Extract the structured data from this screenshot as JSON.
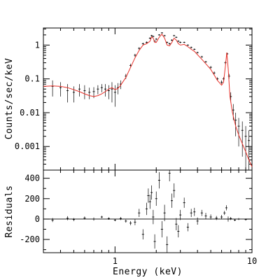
{
  "chart_data": [
    {
      "id": "spectrum",
      "type": "line",
      "xlabel": "",
      "ylabel": "Counts/sec/keV",
      "x_scale": "log",
      "y_scale": "log",
      "xlim": [
        0.3,
        10
      ],
      "ylim": [
        0.0002,
        3.2
      ],
      "x_ticks": [
        1,
        10
      ],
      "x_tick_labels": [
        "1",
        "10"
      ],
      "y_ticks": [
        0.001,
        0.01,
        0.1,
        1
      ],
      "y_tick_labels": [
        "0.001",
        "0.01",
        "0.1",
        "1"
      ],
      "series": [
        {
          "style": "data points with error bars (black)",
          "color": "#000000",
          "x": [
            0.35,
            0.4,
            0.45,
            0.5,
            0.55,
            0.6,
            0.65,
            0.7,
            0.75,
            0.8,
            0.85,
            0.9,
            0.95,
            1.0,
            1.05,
            1.1,
            1.2,
            1.3,
            1.4,
            1.5,
            1.6,
            1.7,
            1.8,
            1.85,
            1.9,
            1.95,
            2.0,
            2.1,
            2.2,
            2.3,
            2.4,
            2.5,
            2.6,
            2.7,
            2.8,
            2.9,
            3.0,
            3.2,
            3.4,
            3.6,
            3.8,
            4.0,
            4.3,
            4.6,
            5.0,
            5.3,
            5.6,
            6.0,
            6.2,
            6.4,
            6.6,
            6.8,
            7.0,
            7.3,
            7.6,
            8.0,
            8.5,
            9.0,
            9.5
          ],
          "values": [
            0.06,
            0.055,
            0.045,
            0.04,
            0.05,
            0.045,
            0.04,
            0.042,
            0.05,
            0.055,
            0.05,
            0.045,
            0.05,
            0.04,
            0.055,
            0.07,
            0.12,
            0.25,
            0.5,
            0.8,
            1.1,
            1.2,
            1.6,
            1.9,
            1.8,
            1.3,
            1.5,
            2.0,
            2.3,
            1.9,
            1.2,
            1.1,
            1.4,
            1.9,
            1.7,
            1.3,
            1.2,
            1.2,
            1.0,
            0.85,
            0.75,
            0.6,
            0.45,
            0.32,
            0.22,
            0.15,
            0.1,
            0.08,
            0.1,
            0.3,
            0.55,
            0.12,
            0.03,
            0.012,
            0.006,
            0.004,
            0.003,
            0.002,
            0.0015
          ],
          "errors": [
            0.03,
            0.025,
            0.025,
            0.02,
            0.02,
            0.02,
            0.015,
            0.015,
            0.015,
            0.015,
            0.02,
            0.02,
            0.03,
            0.025,
            0.02,
            0.02,
            0.02,
            0.03,
            0.05,
            0.06,
            0.08,
            0.08,
            0.1,
            0.1,
            0.1,
            0.08,
            0.09,
            0.1,
            0.1,
            0.1,
            0.07,
            0.07,
            0.08,
            0.1,
            0.09,
            0.08,
            0.07,
            0.06,
            0.05,
            0.05,
            0.04,
            0.035,
            0.03,
            0.02,
            0.02,
            0.015,
            0.012,
            0.01,
            0.012,
            0.03,
            0.04,
            0.02,
            0.01,
            0.006,
            0.004,
            0.003,
            0.0025,
            0.002,
            0.0015
          ]
        },
        {
          "style": "model (red)",
          "color": "#e8312a",
          "x": [
            0.3,
            0.35,
            0.4,
            0.45,
            0.5,
            0.55,
            0.6,
            0.65,
            0.7,
            0.75,
            0.8,
            0.85,
            0.9,
            0.95,
            1.0,
            1.05,
            1.1,
            1.2,
            1.3,
            1.4,
            1.5,
            1.6,
            1.7,
            1.8,
            1.85,
            1.9,
            1.95,
            2.0,
            2.1,
            2.2,
            2.3,
            2.4,
            2.5,
            2.6,
            2.7,
            2.8,
            2.9,
            3.0,
            3.2,
            3.4,
            3.6,
            3.8,
            4.0,
            4.3,
            4.6,
            5.0,
            5.3,
            5.6,
            6.0,
            6.2,
            6.4,
            6.55,
            6.7,
            6.9,
            7.2,
            7.6,
            8.0,
            8.5,
            9.0,
            9.5,
            10.0
          ],
          "values": [
            0.06,
            0.062,
            0.06,
            0.055,
            0.048,
            0.042,
            0.036,
            0.032,
            0.03,
            0.032,
            0.036,
            0.042,
            0.05,
            0.055,
            0.048,
            0.052,
            0.065,
            0.11,
            0.22,
            0.42,
            0.7,
            1.0,
            1.1,
            1.3,
            1.75,
            1.6,
            1.2,
            1.2,
            1.7,
            2.1,
            1.6,
            1.0,
            0.95,
            1.2,
            1.6,
            1.4,
            1.1,
            1.0,
            1.05,
            0.9,
            0.75,
            0.65,
            0.52,
            0.38,
            0.28,
            0.19,
            0.13,
            0.09,
            0.065,
            0.08,
            0.25,
            0.6,
            0.2,
            0.03,
            0.01,
            0.004,
            0.0022,
            0.0012,
            0.0007,
            0.0004,
            0.00025
          ]
        }
      ]
    },
    {
      "id": "residuals",
      "type": "line",
      "xlabel": "Energy (keV)",
      "ylabel": "Residuals",
      "x_scale": "log",
      "y_scale": "linear",
      "xlim": [
        0.3,
        10
      ],
      "ylim": [
        -330,
        480
      ],
      "x_ticks": [
        1,
        10
      ],
      "x_tick_labels": [
        "1",
        "10"
      ],
      "y_ticks": [
        -200,
        0,
        200,
        400
      ],
      "y_tick_labels": [
        "-200",
        "0",
        "200",
        "400"
      ],
      "reference_line": 0,
      "series": [
        {
          "style": "residual points with error bars (black)",
          "color": "#000000",
          "x": [
            0.35,
            0.45,
            0.5,
            0.6,
            0.7,
            0.8,
            0.9,
            1.0,
            1.1,
            1.2,
            1.3,
            1.4,
            1.5,
            1.6,
            1.7,
            1.75,
            1.8,
            1.85,
            1.9,
            1.95,
            2.0,
            2.1,
            2.2,
            2.3,
            2.4,
            2.5,
            2.6,
            2.7,
            2.8,
            2.9,
            3.0,
            3.2,
            3.4,
            3.6,
            3.8,
            4.0,
            4.3,
            4.6,
            5.0,
            5.5,
            6.0,
            6.3,
            6.5,
            6.7,
            7.0,
            7.5,
            8.0,
            9.0
          ],
          "values": [
            -10,
            8,
            -5,
            10,
            0,
            20,
            5,
            -10,
            5,
            -20,
            -40,
            -30,
            60,
            -150,
            100,
            230,
            170,
            260,
            20,
            -220,
            200,
            380,
            -100,
            60,
            -250,
            450,
            180,
            280,
            -50,
            -120,
            40,
            160,
            -80,
            60,
            70,
            -20,
            60,
            30,
            20,
            10,
            20,
            60,
            110,
            0,
            5,
            -10,
            0,
            -5
          ],
          "errors": [
            20,
            20,
            15,
            15,
            15,
            12,
            12,
            12,
            15,
            15,
            20,
            30,
            40,
            50,
            60,
            70,
            70,
            70,
            70,
            70,
            70,
            80,
            80,
            80,
            80,
            80,
            70,
            70,
            60,
            60,
            50,
            50,
            40,
            40,
            40,
            35,
            30,
            30,
            25,
            20,
            20,
            20,
            25,
            25,
            15,
            10,
            10,
            10
          ]
        }
      ]
    }
  ]
}
